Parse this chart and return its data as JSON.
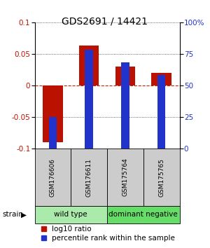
{
  "title": "GDS2691 / 14421",
  "samples": [
    "GSM176606",
    "GSM176611",
    "GSM175764",
    "GSM175765"
  ],
  "log10_ratio": [
    -0.09,
    0.063,
    0.03,
    0.02
  ],
  "percentile_rank": [
    25,
    78,
    68,
    58
  ],
  "groups": [
    {
      "label": "wild type",
      "samples": [
        0,
        1
      ],
      "color": "#aaeaaa"
    },
    {
      "label": "dominant negative",
      "samples": [
        2,
        3
      ],
      "color": "#66dd66"
    }
  ],
  "group_label": "strain",
  "ylim_left": [
    -0.1,
    0.1
  ],
  "ylim_right": [
    0,
    100
  ],
  "yticks_left": [
    -0.1,
    -0.05,
    0,
    0.05,
    0.1
  ],
  "ytick_labels_left": [
    "-0.1",
    "-0.05",
    "0",
    "0.05",
    "0.1"
  ],
  "yticks_right": [
    0,
    25,
    50,
    75,
    100
  ],
  "ytick_labels_right": [
    "0",
    "25",
    "50",
    "75",
    "100%"
  ],
  "red_color": "#bb1100",
  "blue_color": "#2233cc",
  "zero_line_color": "#cc2200",
  "dot_line_color": "#333333",
  "bg_color": "#ffffff",
  "sample_box_color": "#cccccc",
  "title_fontsize": 10,
  "tick_fontsize": 7.5,
  "sample_fontsize": 6.5,
  "group_fontsize": 7.5,
  "legend_fontsize": 7.5
}
